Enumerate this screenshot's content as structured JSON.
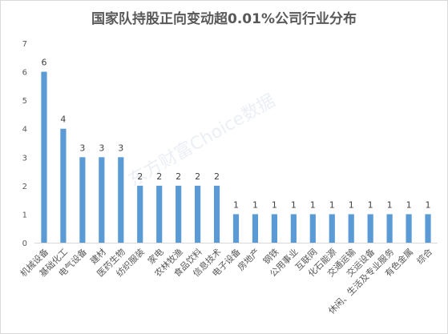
{
  "chart_data": {
    "type": "bar",
    "title": "国家队持股正向变动超0.01%公司行业分布",
    "xlabel": "",
    "ylabel": "",
    "ylim": [
      0,
      7
    ],
    "yticks": [
      0,
      1,
      2,
      3,
      4,
      5,
      6,
      7
    ],
    "grid": false,
    "legend": "none",
    "bar_color": "#5b9bd5",
    "categories": [
      "机械设备",
      "基础化工",
      "电气设备",
      "建材",
      "医药生物",
      "纺织服装",
      "家电",
      "农林牧渔",
      "食品饮料",
      "信息技术",
      "电子设备",
      "房地产",
      "钢铁",
      "公用事业",
      "互联网",
      "化石能源",
      "交通运输",
      "交运设备",
      "休闲、生活及专业服务",
      "有色金属",
      "综合"
    ],
    "values": [
      6,
      4,
      3,
      3,
      3,
      2,
      2,
      2,
      2,
      2,
      1,
      1,
      1,
      1,
      1,
      1,
      1,
      1,
      1,
      1,
      1
    ]
  },
  "watermark_text": "东方财富Choice数据"
}
